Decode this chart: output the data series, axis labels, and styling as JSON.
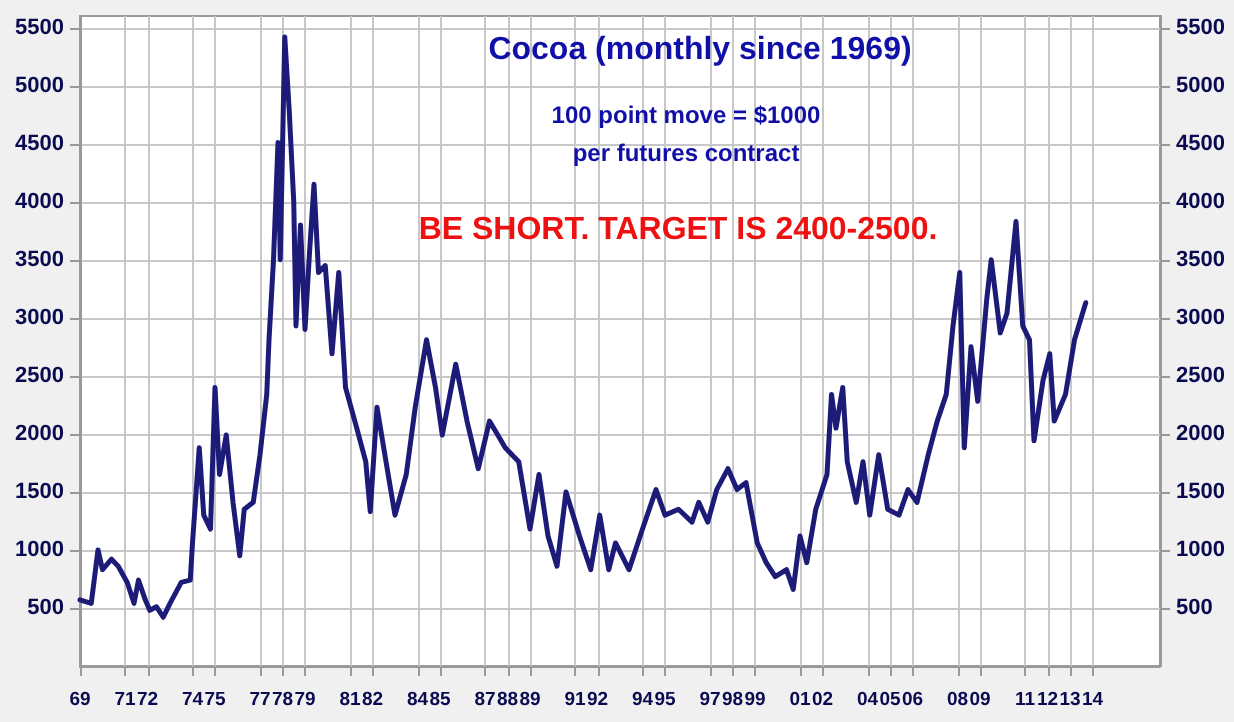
{
  "chart_data": {
    "type": "line",
    "title": "Cocoa (monthly since 1969)",
    "subtitle": "100 point move = $1000\nper futures contract",
    "annotations": [
      "BE SHORT. TARGET IS 2400-2500."
    ],
    "series": [
      {
        "color": "#1c1c78",
        "x": [
          1969.0,
          1969.5,
          1969.8,
          1970.0,
          1970.4,
          1970.7,
          1971.1,
          1971.4,
          1971.6,
          1971.9,
          1972.1,
          1972.4,
          1972.7,
          1973.0,
          1973.5,
          1973.9,
          1974.0,
          1974.3,
          1974.5,
          1974.8,
          1975.0,
          1975.2,
          1975.5,
          1975.8,
          1976.1,
          1976.3,
          1976.7,
          1977.0,
          1977.3,
          1977.4,
          1977.6,
          1977.8,
          1977.9,
          1978.1,
          1978.3,
          1978.5,
          1978.6,
          1978.8,
          1979.0,
          1979.2,
          1979.4,
          1979.6,
          1979.9,
          1980.2,
          1980.5,
          1980.8,
          1981.3,
          1981.7,
          1981.9,
          1982.2,
          1982.6,
          1983.0,
          1983.5,
          1983.9,
          1984.4,
          1984.8,
          1985.1,
          1985.7,
          1986.2,
          1986.7,
          1987.2,
          1987.9,
          1988.5,
          1989.0,
          1989.4,
          1989.8,
          1990.2,
          1990.6,
          1991.2,
          1991.7,
          1992.1,
          1992.5,
          1992.8,
          1993.4,
          1994.0,
          1994.6,
          1995.0,
          1995.6,
          1996.2,
          1996.5,
          1996.9,
          1997.3,
          1997.8,
          1998.2,
          1998.6,
          1999.1,
          1999.5,
          1999.9,
          2000.4,
          2000.7,
          2001.0,
          2001.3,
          2001.7,
          2002.2,
          2002.4,
          2002.6,
          2002.9,
          2003.1,
          2003.5,
          2003.8,
          2004.1,
          2004.5,
          2004.9,
          2005.4,
          2005.8,
          2006.2,
          2006.7,
          2007.1,
          2007.5,
          2007.8,
          2008.1,
          2008.3,
          2008.6,
          2008.9,
          2009.3,
          2009.5,
          2009.9,
          2010.2,
          2010.6,
          2010.9,
          2011.2,
          2011.4,
          2011.8,
          2012.1,
          2012.3,
          2012.8,
          2013.2,
          2013.7
        ],
        "values": [
          570,
          540,
          1000,
          830,
          920,
          860,
          720,
          540,
          740,
          570,
          480,
          510,
          420,
          540,
          720,
          740,
          1060,
          1880,
          1300,
          1180,
          2400,
          1650,
          1990,
          1410,
          950,
          1350,
          1410,
          1820,
          2340,
          2810,
          3500,
          4510,
          3500,
          5420,
          4780,
          4000,
          2930,
          3800,
          2900,
          3560,
          4150,
          3390,
          3450,
          2690,
          3390,
          2400,
          2050,
          1760,
          1330,
          2230,
          1760,
          1300,
          1650,
          2230,
          2810,
          2400,
          1990,
          2600,
          2110,
          1700,
          2110,
          1880,
          1760,
          1180,
          1650,
          1120,
          860,
          1500,
          1120,
          830,
          1300,
          830,
          1060,
          830,
          1180,
          1520,
          1300,
          1350,
          1240,
          1410,
          1240,
          1520,
          1700,
          1520,
          1580,
          1060,
          890,
          770,
          830,
          660,
          1120,
          890,
          1350,
          1650,
          2340,
          2050,
          2400,
          1760,
          1410,
          1760,
          1300,
          1820,
          1350,
          1300,
          1520,
          1410,
          1820,
          2110,
          2340,
          2930,
          3390,
          1880,
          2750,
          2280,
          3160,
          3500,
          2870,
          3040,
          3830,
          2930,
          2810,
          1940,
          2460,
          2690,
          2110,
          2340,
          2810,
          3130
        ]
      }
    ],
    "xlim": [
      1969,
      2017
    ],
    "xticks": [
      {
        "value": 1969,
        "label": "69"
      },
      {
        "value": 1971,
        "label": "71"
      },
      {
        "value": 1972,
        "label": "72"
      },
      {
        "value": 1974,
        "label": "74"
      },
      {
        "value": 1975,
        "label": "75"
      },
      {
        "value": 1977,
        "label": "77"
      },
      {
        "value": 1978,
        "label": "78"
      },
      {
        "value": 1979,
        "label": "79"
      },
      {
        "value": 1981,
        "label": "81"
      },
      {
        "value": 1982,
        "label": "82"
      },
      {
        "value": 1984,
        "label": "84"
      },
      {
        "value": 1985,
        "label": "85"
      },
      {
        "value": 1987,
        "label": "87"
      },
      {
        "value": 1988,
        "label": "88"
      },
      {
        "value": 1989,
        "label": "89"
      },
      {
        "value": 1991,
        "label": "91"
      },
      {
        "value": 1992,
        "label": "92"
      },
      {
        "value": 1994,
        "label": "94"
      },
      {
        "value": 1995,
        "label": "95"
      },
      {
        "value": 1997,
        "label": "97"
      },
      {
        "value": 1998,
        "label": "98"
      },
      {
        "value": 1999,
        "label": "99"
      },
      {
        "value": 2001,
        "label": "01"
      },
      {
        "value": 2002,
        "label": "02"
      },
      {
        "value": 2004,
        "label": "04"
      },
      {
        "value": 2005,
        "label": "05"
      },
      {
        "value": 2006,
        "label": "06"
      },
      {
        "value": 2008,
        "label": "08"
      },
      {
        "value": 2009,
        "label": "09"
      },
      {
        "value": 2011,
        "label": "11"
      },
      {
        "value": 2012,
        "label": "12"
      },
      {
        "value": 2013,
        "label": "13"
      },
      {
        "value": 2014,
        "label": "14"
      }
    ],
    "ylim": [
      0,
      5600
    ],
    "yticks": [
      500,
      1000,
      1500,
      2000,
      2500,
      3000,
      3500,
      4000,
      4500,
      5000,
      5500
    ],
    "y2lim": [
      0,
      5600
    ],
    "y2ticks": [
      500,
      1000,
      1500,
      2000,
      2500,
      3000,
      3500,
      4000,
      4500,
      5000,
      5500
    ],
    "grid": true,
    "marker": "none",
    "line_style": "solid"
  }
}
